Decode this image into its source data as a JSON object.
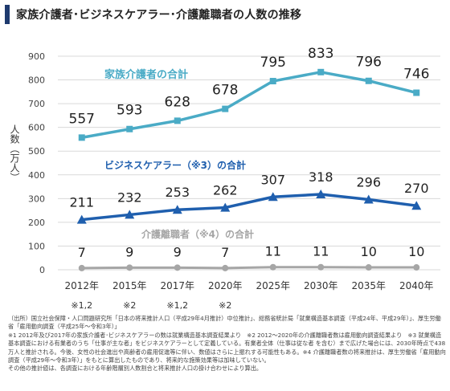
{
  "header": {
    "title": "家族介護者･ビジネスケアラー･介護離職者の人数の推移"
  },
  "chart_data": {
    "type": "line",
    "categories": [
      "2012年",
      "2015年",
      "2017年",
      "2020年",
      "2025年",
      "2030年",
      "2035年",
      "2040年"
    ],
    "category_notes": [
      "※1,2",
      "※2",
      "※1,2",
      "※2",
      "",
      "",
      "",
      ""
    ],
    "ylabel": "人数（万人）",
    "ylim": [
      0,
      900
    ],
    "yticks": [
      0,
      100,
      200,
      300,
      400,
      500,
      600,
      700,
      800,
      900
    ],
    "grid": true,
    "series": [
      {
        "name": "家族介護者の合計",
        "values": [
          557,
          593,
          628,
          678,
          795,
          833,
          796,
          746
        ],
        "labels": [
          "557",
          "593",
          "628",
          "678",
          "795",
          "833",
          "796",
          "746"
        ],
        "color": "#4aabc6",
        "marker": "square"
      },
      {
        "name": "ビジネスケアラー（※3）の合計",
        "values": [
          211,
          232,
          253,
          262,
          307,
          318,
          296,
          270
        ],
        "labels": [
          "211",
          "232",
          "253",
          "262",
          "307",
          "318",
          "296",
          "270"
        ],
        "color": "#1f5fae",
        "marker": "triangle"
      },
      {
        "name": "介護離職者（※4）の合計",
        "values": [
          7,
          9,
          9,
          7,
          11,
          11,
          10,
          10
        ],
        "labels": [
          "7",
          "9",
          "9",
          "7",
          "11",
          "11",
          "10",
          "10"
        ],
        "color": "#a6a6a6",
        "marker": "circle"
      }
    ]
  },
  "notes": [
    "（出所）国立社会保障・人口問題研究所「日本の将来推計人口（平成29年4月推計）中位推計」、総務省統計局「就業構造基本調査（平成24年、平成29年）」、厚生労働省「雇用動向調査（平成25年～令和3年）」",
    "※1 2012年及び2017年の家族介護者･ビジネスケアラーの数は就業構造基本調査結果より　※2 2012～2020年の介護離職者数は雇用動向調査結果より　※3 就業構造基本調査における有業者のうち「仕事が主な者」をビジネスケアラーとして定義している。有業者全体（仕事は従な者 を含む）まで広げた場合には、2030年時点で438万人と推計される。今後、女性の社会進出や高齢者の雇用促進等に伴い、数値はさらに上振れする可能性もある。※4 介護離職者数の将来推計は、厚生労働省「雇用動向調査（平成29年～令和3年）」をもとに算出したものであり、将来的な施策効果等は加味していない。",
    "その他の推計値は、各調査における年齢階層別人数割合と将来推計人口の掛け合わせにより算出。"
  ]
}
